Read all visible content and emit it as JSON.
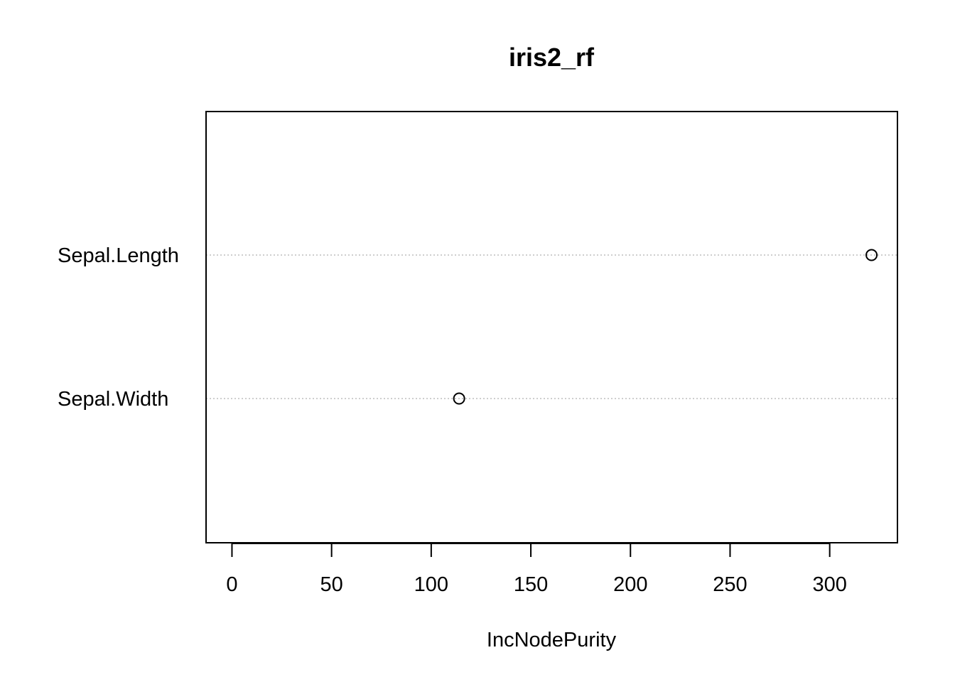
{
  "chart_data": {
    "type": "scatter",
    "subtype": "dotchart",
    "title": "iris2_rf",
    "xlabel": "IncNodePurity",
    "ylabel": "",
    "categories": [
      "Sepal.Length",
      "Sepal.Width"
    ],
    "values": [
      321,
      114
    ],
    "xlim": [
      -13,
      334
    ],
    "xticks": [
      0,
      50,
      100,
      150,
      200,
      250,
      300
    ],
    "grid": "dotted horizontal guide lines",
    "legend": "none",
    "colors": {
      "points": "#000000",
      "guides": "#bebebe",
      "frame": "#000000"
    }
  }
}
